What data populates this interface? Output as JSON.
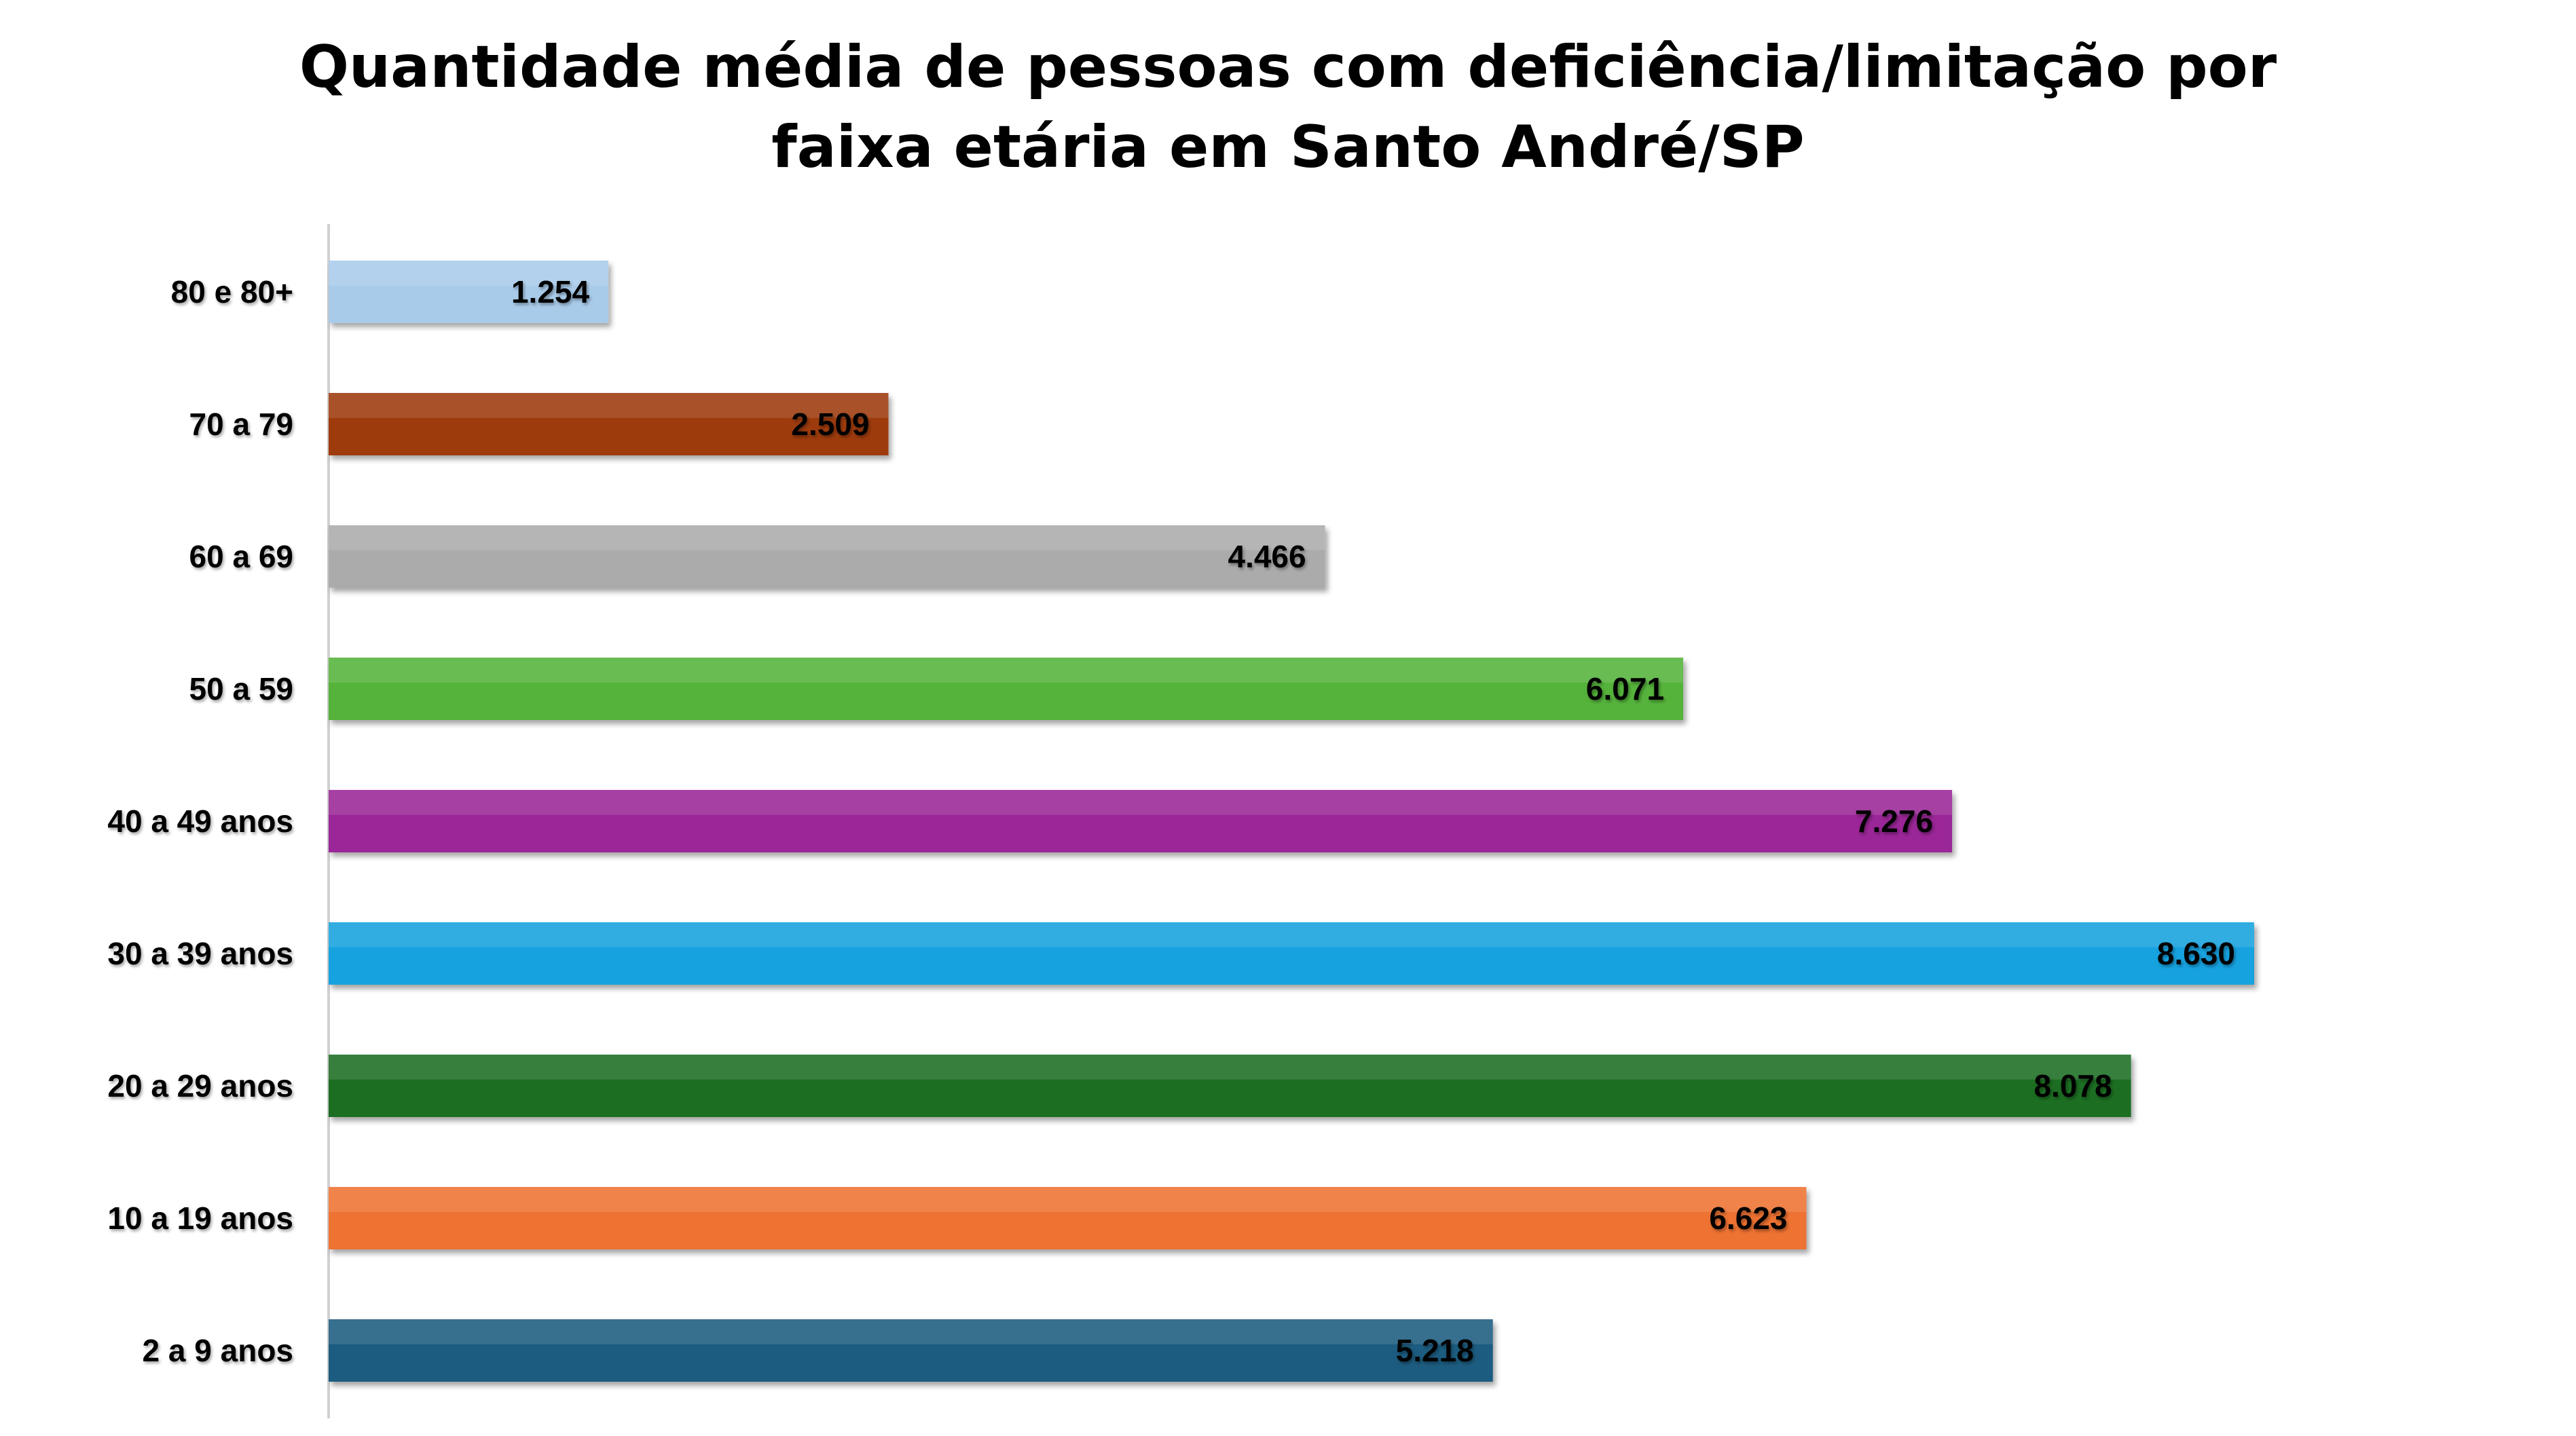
{
  "chart_data": {
    "type": "bar",
    "orientation": "horizontal",
    "title_lines": [
      "Quantidade média de pessoas com deficiência/limitação por",
      "faixa etária em Santo André/SP"
    ],
    "categories": [
      "80 e 80+",
      "70 a 79",
      "60 a 69",
      "50 a 59",
      "40 a 49 anos",
      "30 a 39 anos",
      "20 a 29 anos",
      "10 a 19 anos",
      "2 a 9 anos"
    ],
    "values": [
      1254,
      2509,
      4466,
      6071,
      7276,
      8630,
      8078,
      6623,
      5218
    ],
    "value_labels": [
      "1.254",
      "2.509",
      "4.466",
      "6.071",
      "7.276",
      "8.630",
      "8.078",
      "6.623",
      "5.218"
    ],
    "colors": [
      "#A9CBEA",
      "#9E3A0C",
      "#ABABAB",
      "#55B33A",
      "#9A2597",
      "#12A2DF",
      "#1B6E22",
      "#EE7232",
      "#1B5C80"
    ],
    "xlim": [
      0,
      8630
    ],
    "grid": false,
    "legend": "none"
  }
}
